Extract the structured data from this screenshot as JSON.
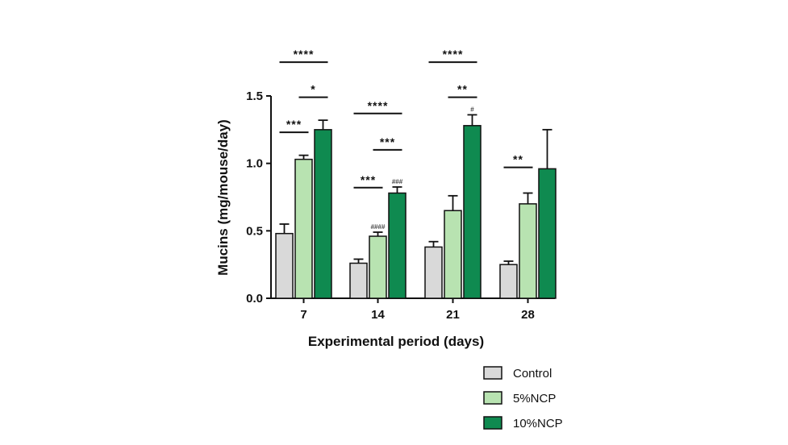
{
  "chart_data": {
    "type": "bar",
    "xlabel": "Experimental period (days)",
    "ylabel": "Mucins (mg/mouse/day)",
    "categories": [
      "7",
      "14",
      "21",
      "28"
    ],
    "ylim": [
      0,
      1.5
    ],
    "yticks": [
      "0.0",
      "0.5",
      "1.0",
      "1.5"
    ],
    "grid": false,
    "legend_position": "bottom-right",
    "error_bars": "upper",
    "series": [
      {
        "name": "Control",
        "color": "#d9d9d9",
        "values": [
          0.48,
          0.26,
          0.38,
          0.25
        ],
        "errors": [
          0.07,
          0.03,
          0.04,
          0.025
        ]
      },
      {
        "name": "5%NCP",
        "color": "#b8e3b1",
        "values": [
          1.03,
          0.46,
          0.65,
          0.7
        ],
        "errors": [
          0.03,
          0.03,
          0.11,
          0.08
        ]
      },
      {
        "name": "10%NCP",
        "color": "#0f8a50",
        "values": [
          1.25,
          0.78,
          1.28,
          0.96
        ],
        "errors": [
          0.07,
          0.045,
          0.08,
          0.29
        ]
      }
    ],
    "significance": [
      {
        "category": 0,
        "from": 0,
        "to": 2,
        "label": "****",
        "y": 1.75
      },
      {
        "category": 0,
        "from": 1,
        "to": 2,
        "label": "*",
        "y": 1.49
      },
      {
        "category": 0,
        "from": 0,
        "to": 1,
        "label": "***",
        "y": 1.23
      },
      {
        "category": 1,
        "from": 0,
        "to": 2,
        "label": "****",
        "y": 1.37
      },
      {
        "category": 1,
        "from": 1,
        "to": 2,
        "label": "***",
        "y": 1.1
      },
      {
        "category": 1,
        "from": 0,
        "to": 1,
        "label": "***",
        "y": 0.82
      },
      {
        "category": 2,
        "from": 0,
        "to": 2,
        "label": "****",
        "y": 1.75
      },
      {
        "category": 2,
        "from": 1,
        "to": 2,
        "label": "**",
        "y": 1.49
      },
      {
        "category": 3,
        "from": 0,
        "to": 1,
        "label": "**",
        "y": 0.97
      }
    ],
    "bar_marks": [
      {
        "category": 1,
        "series": 1,
        "label": "####"
      },
      {
        "category": 1,
        "series": 2,
        "label": "###"
      },
      {
        "category": 2,
        "series": 2,
        "label": "#"
      }
    ]
  }
}
